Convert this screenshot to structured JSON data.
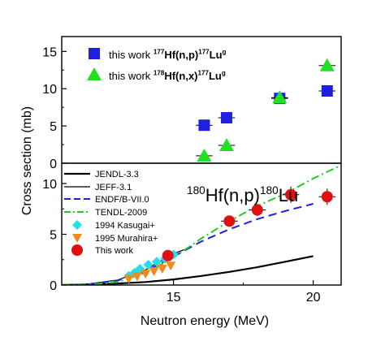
{
  "chart_data": [
    {
      "type": "scatter",
      "panel": "top",
      "ylabel": "Cross section (mb)",
      "ylim": [
        0,
        17
      ],
      "xlim": [
        11,
        21
      ],
      "yticks": [
        0,
        5,
        10,
        15
      ],
      "grid": false,
      "legend_position": "top-left",
      "series": [
        {
          "name": "this work 177Hf(n,p)177Lug",
          "legend": {
            "prefix": "this work ",
            "sup1": "177",
            "main1": "Hf(n,p)",
            "sup2": "177",
            "main2": "Lu",
            "sup3": "g"
          },
          "marker": "square",
          "color": "#1f1fe0",
          "points": [
            {
              "x": 16.1,
              "y": 5.1,
              "xerr": 0.3,
              "yerr": 0.3
            },
            {
              "x": 16.9,
              "y": 6.1,
              "xerr": 0.3,
              "yerr": 0.3
            },
            {
              "x": 18.8,
              "y": 8.7,
              "xerr": 0.3,
              "yerr": 0.4
            },
            {
              "x": 20.5,
              "y": 9.7,
              "xerr": 0.3,
              "yerr": 0.4
            }
          ]
        },
        {
          "name": "this work 178Hf(n,x)177Lug",
          "legend": {
            "prefix": "this work ",
            "sup1": "178",
            "main1": "Hf(n,x)",
            "sup2": "177",
            "main2": "Lu",
            "sup3": "g"
          },
          "marker": "triangle",
          "color": "#22e022",
          "points": [
            {
              "x": 16.1,
              "y": 1.0,
              "xerr": 0.3,
              "yerr": 0.2
            },
            {
              "x": 16.9,
              "y": 2.4,
              "xerr": 0.3,
              "yerr": 0.3
            },
            {
              "x": 18.8,
              "y": 8.8,
              "xerr": 0.3,
              "yerr": 0.4
            },
            {
              "x": 20.5,
              "y": 13.1,
              "xerr": 0.3,
              "yerr": 0.5
            }
          ]
        }
      ]
    },
    {
      "type": "line",
      "panel": "bottom",
      "annotation": {
        "sup1": "180",
        "main1": "Hf(n,p)",
        "sup2": "180",
        "main2": "Lu"
      },
      "xlabel": "Neutron energy (MeV)",
      "ylabel": "Cross section (mb)",
      "xlim": [
        11,
        21
      ],
      "ylim": [
        0,
        12
      ],
      "xticks": [
        15,
        20
      ],
      "yticks": [
        0,
        5,
        10
      ],
      "grid": false,
      "legend_position": "top-left",
      "series": [
        {
          "name": "JENDL-3.3",
          "style": "solid",
          "color": "#000000",
          "width": 2.2,
          "x": [
            11.0,
            12,
            13,
            14,
            15,
            16,
            17,
            18,
            19,
            20
          ],
          "y": [
            0.0,
            0.05,
            0.15,
            0.3,
            0.55,
            0.9,
            1.3,
            1.75,
            2.3,
            2.85
          ]
        },
        {
          "name": "JEFF-3.1",
          "style": "solid",
          "color": "#000000",
          "width": 1.2,
          "x": [
            11.0,
            12,
            13,
            14,
            14.5,
            15,
            15.5
          ],
          "y": [
            0.0,
            0.12,
            0.5,
            1.5,
            2.3,
            3.1,
            3.6
          ]
        },
        {
          "name": "ENDF/B-VII.0",
          "style": "dash",
          "color": "#1f1fe0",
          "width": 2.0,
          "x": [
            11.0,
            12,
            13,
            14,
            15,
            16,
            17,
            18,
            19,
            20
          ],
          "y": [
            0.0,
            0.1,
            0.45,
            1.35,
            2.8,
            4.3,
            5.5,
            6.5,
            7.3,
            8.0
          ]
        },
        {
          "name": "TENDL-2009",
          "style": "dashdot",
          "color": "#22cc22",
          "width": 2.0,
          "x": [
            11.0,
            12,
            13,
            14,
            15,
            16,
            17,
            18,
            19,
            20,
            21
          ],
          "y": [
            0.0,
            0.05,
            0.3,
            1.2,
            2.7,
            4.6,
            6.3,
            7.8,
            9.0,
            10.5,
            11.8
          ]
        },
        {
          "name": "1994 Kasugai+",
          "marker": "diamond",
          "color": "#22ddee",
          "points": [
            {
              "x": 13.4,
              "y": 0.9
            },
            {
              "x": 13.6,
              "y": 1.2
            },
            {
              "x": 13.8,
              "y": 1.6
            },
            {
              "x": 14.1,
              "y": 2.0
            },
            {
              "x": 14.4,
              "y": 2.3
            },
            {
              "x": 14.7,
              "y": 2.6
            },
            {
              "x": 15.0,
              "y": 3.0
            }
          ]
        },
        {
          "name": "1995 Murahira+",
          "marker": "triangle-down",
          "color": "#f08a1e",
          "points": [
            {
              "x": 13.4,
              "y": 0.6,
              "yerr": 0.1
            },
            {
              "x": 13.7,
              "y": 0.85,
              "yerr": 0.1
            },
            {
              "x": 14.0,
              "y": 1.1,
              "yerr": 0.15
            },
            {
              "x": 14.3,
              "y": 1.35,
              "yerr": 0.15
            },
            {
              "x": 14.6,
              "y": 1.6,
              "yerr": 0.15
            },
            {
              "x": 14.9,
              "y": 1.9,
              "yerr": 0.2
            }
          ]
        },
        {
          "name": "This work",
          "marker": "circle",
          "color": "#e01010",
          "points": [
            {
              "x": 14.8,
              "y": 2.9,
              "xerr": 0.2,
              "yerr": 0.3
            },
            {
              "x": 17.0,
              "y": 6.3,
              "xerr": 0.3,
              "yerr": 0.5
            },
            {
              "x": 18.0,
              "y": 7.4,
              "xerr": 0.3,
              "yerr": 0.6
            },
            {
              "x": 19.2,
              "y": 8.9,
              "xerr": 0.3,
              "yerr": 0.8
            },
            {
              "x": 20.5,
              "y": 8.7,
              "xerr": 0.3,
              "yerr": 0.8
            }
          ]
        }
      ]
    }
  ]
}
